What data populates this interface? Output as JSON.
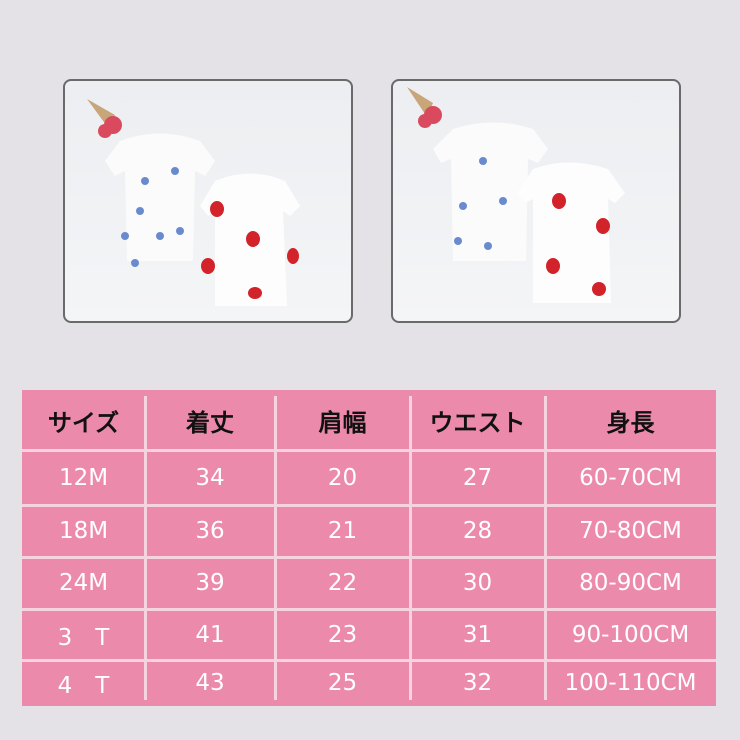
{
  "photos": [
    {
      "description_icon": "shirt-flowers-photo"
    },
    {
      "description_icon": "shirt-back-photo"
    }
  ],
  "colors": {
    "table_bg": "#ec8aab",
    "header_text": "#111111",
    "cell_text": "#ffffff",
    "page_bg": "#e4e1e7"
  },
  "table": {
    "headers": [
      "サイズ",
      "着丈",
      "肩幅",
      "ウエスト",
      "身長"
    ],
    "rows": [
      [
        "12M",
        "34",
        "20",
        "27",
        "60-70CM"
      ],
      [
        "18M",
        "36",
        "21",
        "28",
        "70-80CM"
      ],
      [
        "24M",
        "39",
        "22",
        "30",
        "80-90CM"
      ],
      [
        "3　T",
        "41",
        "23",
        "31",
        "90-100CM"
      ],
      [
        "4　T",
        "43",
        "25",
        "32",
        "100-110CM"
      ]
    ]
  }
}
